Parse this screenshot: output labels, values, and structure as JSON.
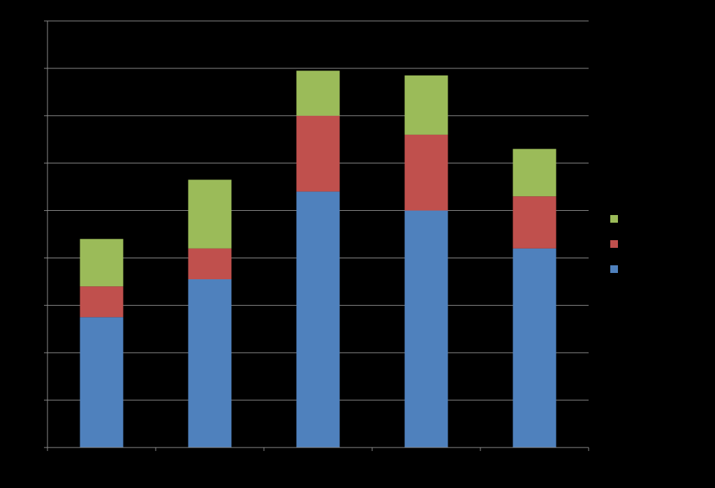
{
  "chart_data": {
    "type": "bar",
    "stacked": true,
    "title": "",
    "xlabel": "",
    "ylabel": "",
    "categories": [
      "",
      "",
      "",
      "",
      ""
    ],
    "ylim": [
      0,
      9
    ],
    "ytick_step": 1,
    "grid": true,
    "legend_position": "right",
    "series": [
      {
        "values": [
          2.75,
          3.55,
          5.4,
          5.0,
          4.2
        ],
        "color": "#4F81BD"
      },
      {
        "values": [
          0.65,
          0.65,
          1.6,
          1.6,
          1.1
        ],
        "color": "#C0504D"
      },
      {
        "values": [
          1.0,
          1.45,
          0.95,
          1.25,
          1.0
        ],
        "color": "#9BBB59"
      }
    ]
  }
}
